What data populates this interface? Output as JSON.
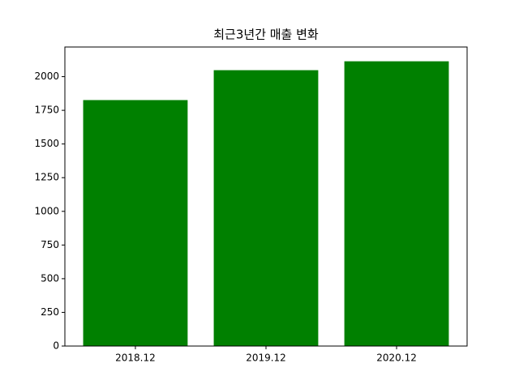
{
  "chart_data": {
    "type": "bar",
    "title": "최근3년간 매출 변화",
    "categories": [
      "2018.12",
      "2019.12",
      "2020.12"
    ],
    "values": [
      1826,
      2048,
      2114
    ],
    "color": "#008000",
    "ylim": [
      0,
      2220
    ],
    "yticks": [
      0,
      250,
      500,
      750,
      1000,
      1250,
      1500,
      1750,
      2000
    ]
  }
}
